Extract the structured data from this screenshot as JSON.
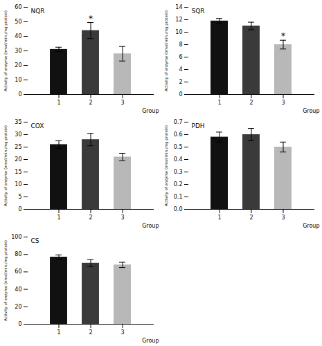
{
  "chart_data": [
    {
      "type": "bar",
      "title": "NQR",
      "xlabel": "Group",
      "ylabel": "Activity of enzyme (nmol/min./mg protein)",
      "categories": [
        "1",
        "2",
        "3"
      ],
      "values": [
        31,
        44,
        28
      ],
      "errors": [
        1.5,
        5.5,
        5
      ],
      "colors": [
        "#111111",
        "#3a3a3a",
        "#b8b8b8"
      ],
      "ylim": [
        0,
        60
      ],
      "yticks": [
        0,
        10,
        20,
        30,
        40,
        50,
        60
      ],
      "annotations": [
        {
          "category": "2",
          "text": "*"
        }
      ]
    },
    {
      "type": "bar",
      "title": "SQR",
      "xlabel": "Group",
      "ylabel": "Activity of enzyme (nmol/min./mg protein)",
      "categories": [
        "1",
        "2",
        "3"
      ],
      "values": [
        11.8,
        11.0,
        8.0
      ],
      "errors": [
        0.4,
        0.6,
        0.7
      ],
      "colors": [
        "#111111",
        "#3a3a3a",
        "#b8b8b8"
      ],
      "ylim": [
        0,
        14
      ],
      "yticks": [
        0,
        2,
        4,
        6,
        8,
        10,
        12,
        14
      ],
      "annotations": [
        {
          "category": "3",
          "text": "*"
        }
      ]
    },
    {
      "type": "bar",
      "title": "COX",
      "xlabel": "Group",
      "ylabel": "Activity of enzyme (nmol/min./mg protein)",
      "categories": [
        "1",
        "2",
        "3"
      ],
      "values": [
        26,
        28,
        21
      ],
      "errors": [
        1.5,
        2.5,
        1.5
      ],
      "colors": [
        "#111111",
        "#3a3a3a",
        "#b8b8b8"
      ],
      "ylim": [
        0,
        35
      ],
      "yticks": [
        0,
        5,
        10,
        15,
        20,
        25,
        30,
        35
      ]
    },
    {
      "type": "bar",
      "title": "PDH",
      "xlabel": "Group",
      "ylabel": "Activity of enzyme (nmol/min./mg protein)",
      "categories": [
        "1",
        "2",
        "3"
      ],
      "values": [
        0.58,
        0.6,
        0.5
      ],
      "errors": [
        0.04,
        0.05,
        0.04
      ],
      "colors": [
        "#111111",
        "#3a3a3a",
        "#b8b8b8"
      ],
      "ylim": [
        0.0,
        0.7
      ],
      "yticks": [
        {
          "value": 0,
          "label": "0.0"
        },
        0.1,
        0.2,
        0.3,
        0.4,
        0.5,
        0.6,
        0.7
      ]
    },
    {
      "type": "bar",
      "title": "CS",
      "xlabel": "Group",
      "ylabel": "Activity of enzyme (nmol/min./mg protein)",
      "categories": [
        "1",
        "2",
        "3"
      ],
      "values": [
        77,
        70,
        68
      ],
      "errors": [
        2.5,
        4,
        3
      ],
      "colors": [
        "#111111",
        "#3a3a3a",
        "#b8b8b8"
      ],
      "ylim": [
        0,
        100
      ],
      "yticks": [
        0,
        20,
        40,
        60,
        80,
        100
      ]
    }
  ]
}
